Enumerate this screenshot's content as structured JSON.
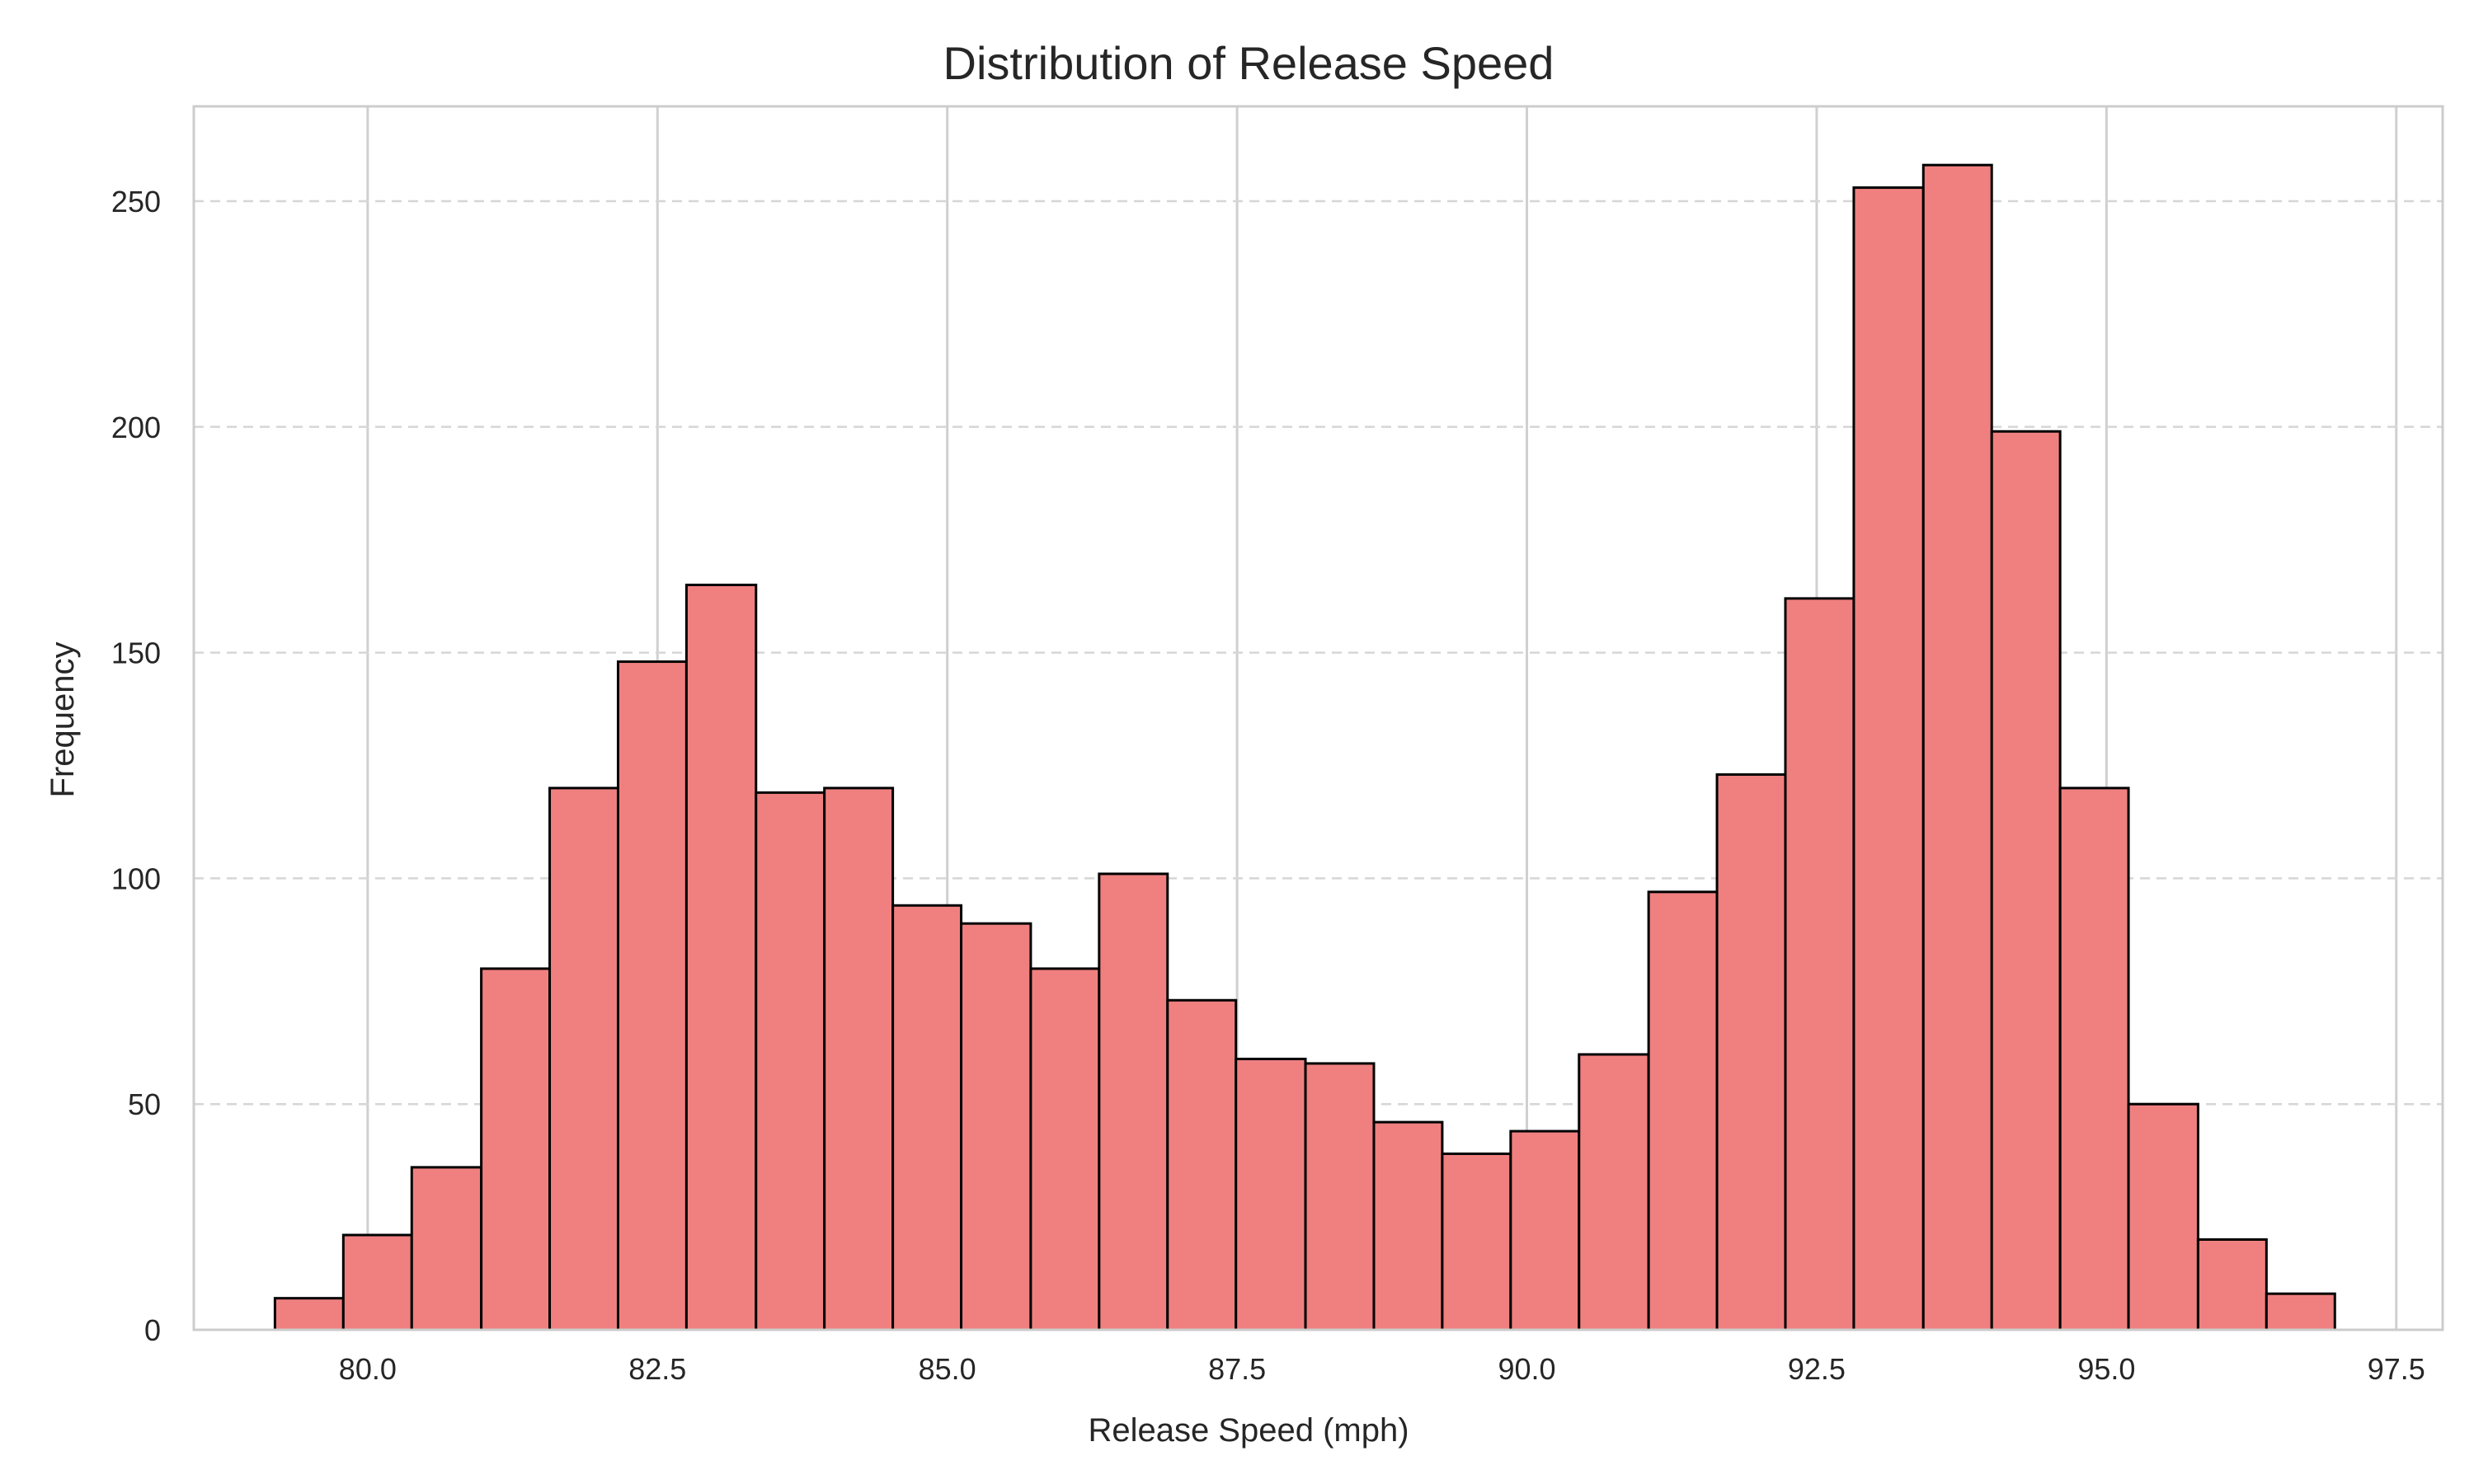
{
  "chart_data": {
    "type": "bar",
    "subtype": "histogram",
    "title": "Distribution of Release Speed",
    "xlabel": "Release Speed (mph)",
    "ylabel": "Frequency",
    "xlim": [
      78.5,
      97.9
    ],
    "ylim": [
      0,
      271
    ],
    "x_ticks": [
      80.0,
      82.5,
      85.0,
      87.5,
      90.0,
      92.5,
      95.0,
      97.5
    ],
    "x_tick_labels": [
      "80.0",
      "82.5",
      "85.0",
      "87.5",
      "90.0",
      "92.5",
      "95.0",
      "97.5"
    ],
    "y_ticks": [
      0,
      50,
      100,
      150,
      200,
      250
    ],
    "y_tick_labels": [
      "0",
      "50",
      "100",
      "150",
      "200",
      "250"
    ],
    "grid": {
      "x": "solid",
      "y": "dashed"
    },
    "bar_color": "#f08080",
    "edge_color": "#000000",
    "bin_edges": [
      79.2,
      79.79,
      80.38,
      80.98,
      81.57,
      82.16,
      82.75,
      83.35,
      83.94,
      84.53,
      85.12,
      85.72,
      86.31,
      86.9,
      87.49,
      88.09,
      88.68,
      89.27,
      89.86,
      90.45,
      91.05,
      91.64,
      92.23,
      92.82,
      93.42,
      94.01,
      94.6,
      95.19,
      95.79,
      96.38,
      96.97
    ],
    "values": [
      7,
      21,
      36,
      80,
      120,
      148,
      165,
      119,
      120,
      94,
      90,
      80,
      101,
      73,
      60,
      59,
      46,
      39,
      44,
      61,
      97,
      123,
      162,
      253,
      258,
      199,
      120,
      50,
      20,
      8
    ]
  }
}
